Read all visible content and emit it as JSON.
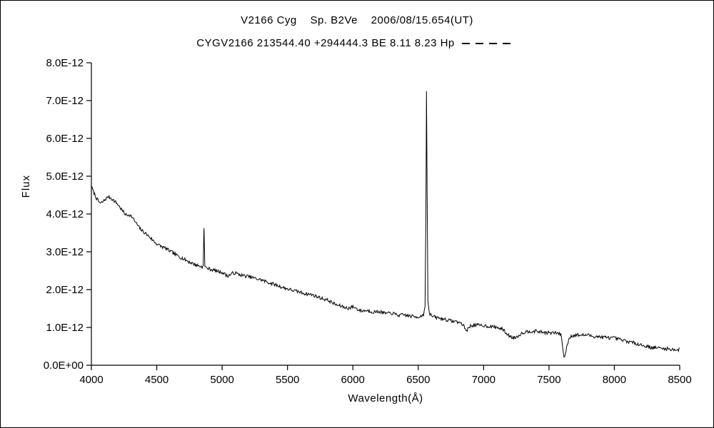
{
  "chart_data": {
    "type": "line",
    "title": "V2166 Cyg    Sp. B2Ve    2006/08/15.654(UT)",
    "subtitle": "CYGV2166 213544.40 +294444.3 BE 8.11 8.23 Hp",
    "legend_line_style": "dashed",
    "xlabel": "Wavelength(Å)",
    "ylabel": "Flux",
    "xlim": [
      4000,
      8500
    ],
    "ylim": [
      0,
      8e-12
    ],
    "x_ticks": [
      4000,
      4500,
      5000,
      5500,
      6000,
      6500,
      7000,
      7500,
      8000,
      8500
    ],
    "y_tick_labels": [
      "0.0E+00",
      "1.0E-12",
      "2.0E-12",
      "3.0E-12",
      "4.0E-12",
      "5.0E-12",
      "6.0E-12",
      "7.0E-12",
      "8.0E-12"
    ],
    "grid": false,
    "value_unit": "1E-12",
    "noise_amplitude": 0.045,
    "series": [
      {
        "name": "spectrum",
        "points": [
          [
            4000,
            4.72
          ],
          [
            4015,
            4.6
          ],
          [
            4030,
            4.48
          ],
          [
            4050,
            4.35
          ],
          [
            4070,
            4.28
          ],
          [
            4090,
            4.33
          ],
          [
            4110,
            4.4
          ],
          [
            4130,
            4.46
          ],
          [
            4150,
            4.42
          ],
          [
            4170,
            4.36
          ],
          [
            4190,
            4.3
          ],
          [
            4210,
            4.22
          ],
          [
            4230,
            4.12
          ],
          [
            4250,
            4.03
          ],
          [
            4270,
            3.96
          ],
          [
            4290,
            3.99
          ],
          [
            4310,
            3.93
          ],
          [
            4330,
            3.82
          ],
          [
            4350,
            3.72
          ],
          [
            4370,
            3.62
          ],
          [
            4390,
            3.55
          ],
          [
            4410,
            3.5
          ],
          [
            4430,
            3.44
          ],
          [
            4450,
            3.38
          ],
          [
            4470,
            3.3
          ],
          [
            4490,
            3.24
          ],
          [
            4510,
            3.19
          ],
          [
            4530,
            3.15
          ],
          [
            4550,
            3.12
          ],
          [
            4570,
            3.09
          ],
          [
            4590,
            3.04
          ],
          [
            4610,
            3.0
          ],
          [
            4630,
            2.96
          ],
          [
            4650,
            2.91
          ],
          [
            4670,
            2.88
          ],
          [
            4690,
            2.84
          ],
          [
            4710,
            2.8
          ],
          [
            4730,
            2.77
          ],
          [
            4750,
            2.73
          ],
          [
            4770,
            2.7
          ],
          [
            4790,
            2.67
          ],
          [
            4810,
            2.64
          ],
          [
            4830,
            2.62
          ],
          [
            4848,
            2.6
          ],
          [
            4855,
            2.63
          ],
          [
            4861,
            3.62
          ],
          [
            4868,
            2.62
          ],
          [
            4880,
            2.57
          ],
          [
            4900,
            2.55
          ],
          [
            4920,
            2.53
          ],
          [
            4940,
            2.51
          ],
          [
            4960,
            2.49
          ],
          [
            4980,
            2.47
          ],
          [
            5000,
            2.46
          ],
          [
            5020,
            2.41
          ],
          [
            5040,
            2.36
          ],
          [
            5060,
            2.39
          ],
          [
            5080,
            2.43
          ],
          [
            5100,
            2.44
          ],
          [
            5120,
            2.41
          ],
          [
            5140,
            2.39
          ],
          [
            5160,
            2.37
          ],
          [
            5180,
            2.36
          ],
          [
            5200,
            2.35
          ],
          [
            5220,
            2.33
          ],
          [
            5240,
            2.31
          ],
          [
            5260,
            2.29
          ],
          [
            5280,
            2.27
          ],
          [
            5300,
            2.26
          ],
          [
            5320,
            2.23
          ],
          [
            5340,
            2.21
          ],
          [
            5360,
            2.18
          ],
          [
            5380,
            2.16
          ],
          [
            5400,
            2.14
          ],
          [
            5420,
            2.11
          ],
          [
            5440,
            2.09
          ],
          [
            5460,
            2.06
          ],
          [
            5480,
            2.04
          ],
          [
            5500,
            2.02
          ],
          [
            5520,
            2.0
          ],
          [
            5540,
            1.98
          ],
          [
            5560,
            1.96
          ],
          [
            5580,
            1.95
          ],
          [
            5600,
            1.93
          ],
          [
            5620,
            1.91
          ],
          [
            5640,
            1.89
          ],
          [
            5660,
            1.88
          ],
          [
            5680,
            1.87
          ],
          [
            5700,
            1.85
          ],
          [
            5720,
            1.82
          ],
          [
            5740,
            1.8
          ],
          [
            5760,
            1.77
          ],
          [
            5780,
            1.75
          ],
          [
            5800,
            1.73
          ],
          [
            5820,
            1.7
          ],
          [
            5840,
            1.66
          ],
          [
            5860,
            1.62
          ],
          [
            5880,
            1.59
          ],
          [
            5900,
            1.57
          ],
          [
            5920,
            1.55
          ],
          [
            5940,
            1.53
          ],
          [
            5960,
            1.51
          ],
          [
            5980,
            1.52
          ],
          [
            6000,
            1.55
          ],
          [
            6020,
            1.52
          ],
          [
            6040,
            1.47
          ],
          [
            6060,
            1.44
          ],
          [
            6080,
            1.44
          ],
          [
            6100,
            1.45
          ],
          [
            6120,
            1.44
          ],
          [
            6140,
            1.42
          ],
          [
            6160,
            1.41
          ],
          [
            6180,
            1.41
          ],
          [
            6200,
            1.42
          ],
          [
            6220,
            1.4
          ],
          [
            6240,
            1.38
          ],
          [
            6260,
            1.37
          ],
          [
            6280,
            1.37
          ],
          [
            6300,
            1.38
          ],
          [
            6320,
            1.35
          ],
          [
            6340,
            1.33
          ],
          [
            6360,
            1.32
          ],
          [
            6380,
            1.33
          ],
          [
            6400,
            1.33
          ],
          [
            6420,
            1.31
          ],
          [
            6440,
            1.3
          ],
          [
            6460,
            1.29
          ],
          [
            6480,
            1.28
          ],
          [
            6500,
            1.28
          ],
          [
            6520,
            1.3
          ],
          [
            6540,
            1.34
          ],
          [
            6552,
            1.55
          ],
          [
            6558,
            3.8
          ],
          [
            6563,
            7.25
          ],
          [
            6568,
            4.6
          ],
          [
            6574,
            1.7
          ],
          [
            6585,
            1.38
          ],
          [
            6600,
            1.31
          ],
          [
            6620,
            1.28
          ],
          [
            6640,
            1.26
          ],
          [
            6660,
            1.25
          ],
          [
            6680,
            1.23
          ],
          [
            6700,
            1.22
          ],
          [
            6720,
            1.2
          ],
          [
            6740,
            1.18
          ],
          [
            6760,
            1.17
          ],
          [
            6780,
            1.16
          ],
          [
            6800,
            1.15
          ],
          [
            6820,
            1.12
          ],
          [
            6840,
            1.08
          ],
          [
            6860,
            0.96
          ],
          [
            6870,
            0.92
          ],
          [
            6885,
            0.98
          ],
          [
            6900,
            1.04
          ],
          [
            6920,
            1.06
          ],
          [
            6940,
            1.06
          ],
          [
            6960,
            1.06
          ],
          [
            6980,
            1.05
          ],
          [
            7000,
            1.05
          ],
          [
            7020,
            1.04
          ],
          [
            7040,
            1.03
          ],
          [
            7060,
            1.02
          ],
          [
            7080,
            1.01
          ],
          [
            7100,
            1.0
          ],
          [
            7120,
            0.98
          ],
          [
            7140,
            0.96
          ],
          [
            7160,
            0.9
          ],
          [
            7180,
            0.82
          ],
          [
            7200,
            0.77
          ],
          [
            7220,
            0.73
          ],
          [
            7240,
            0.73
          ],
          [
            7260,
            0.77
          ],
          [
            7280,
            0.82
          ],
          [
            7300,
            0.86
          ],
          [
            7320,
            0.88
          ],
          [
            7340,
            0.89
          ],
          [
            7360,
            0.9
          ],
          [
            7380,
            0.9
          ],
          [
            7400,
            0.9
          ],
          [
            7420,
            0.89
          ],
          [
            7440,
            0.88
          ],
          [
            7460,
            0.87
          ],
          [
            7480,
            0.86
          ],
          [
            7500,
            0.86
          ],
          [
            7520,
            0.85
          ],
          [
            7540,
            0.86
          ],
          [
            7560,
            0.85
          ],
          [
            7580,
            0.84
          ],
          [
            7595,
            0.78
          ],
          [
            7605,
            0.45
          ],
          [
            7615,
            0.22
          ],
          [
            7625,
            0.28
          ],
          [
            7640,
            0.55
          ],
          [
            7655,
            0.72
          ],
          [
            7670,
            0.77
          ],
          [
            7690,
            0.79
          ],
          [
            7710,
            0.8
          ],
          [
            7730,
            0.8
          ],
          [
            7750,
            0.79
          ],
          [
            7770,
            0.8
          ],
          [
            7790,
            0.8
          ],
          [
            7810,
            0.79
          ],
          [
            7830,
            0.77
          ],
          [
            7850,
            0.76
          ],
          [
            7870,
            0.76
          ],
          [
            7890,
            0.75
          ],
          [
            7910,
            0.74
          ],
          [
            7930,
            0.74
          ],
          [
            7950,
            0.73
          ],
          [
            7970,
            0.72
          ],
          [
            7990,
            0.72
          ],
          [
            8010,
            0.71
          ],
          [
            8030,
            0.69
          ],
          [
            8050,
            0.67
          ],
          [
            8070,
            0.65
          ],
          [
            8090,
            0.64
          ],
          [
            8110,
            0.62
          ],
          [
            8130,
            0.61
          ],
          [
            8150,
            0.59
          ],
          [
            8170,
            0.57
          ],
          [
            8190,
            0.56
          ],
          [
            8210,
            0.53
          ],
          [
            8230,
            0.51
          ],
          [
            8250,
            0.5
          ],
          [
            8270,
            0.48
          ],
          [
            8290,
            0.46
          ],
          [
            8310,
            0.47
          ],
          [
            8330,
            0.46
          ],
          [
            8350,
            0.45
          ],
          [
            8370,
            0.44
          ],
          [
            8390,
            0.44
          ],
          [
            8410,
            0.43
          ],
          [
            8430,
            0.42
          ],
          [
            8450,
            0.42
          ],
          [
            8470,
            0.41
          ],
          [
            8485,
            0.4
          ],
          [
            8500,
            0.42
          ]
        ]
      }
    ]
  },
  "colors": {
    "line": "#000000",
    "axis": "#000000",
    "background": "#ffffff"
  }
}
